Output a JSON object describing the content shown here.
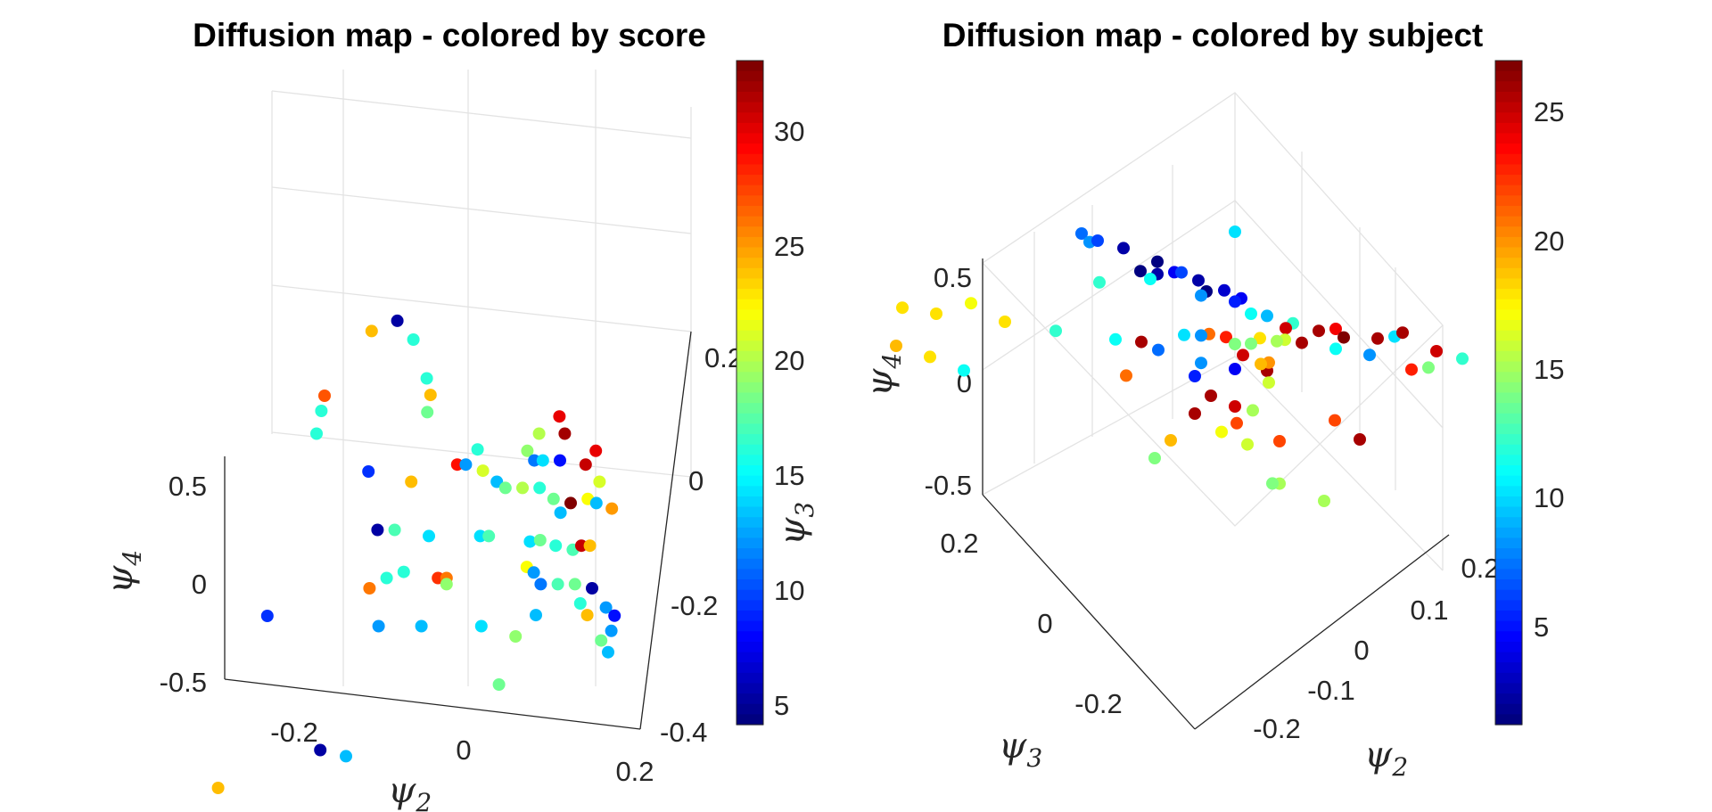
{
  "chart_data": [
    {
      "type": "scatter",
      "title": "Diffusion map - colored by score",
      "xlabel": "ψ2",
      "ylabel": "ψ3",
      "zlabel": "ψ4",
      "x_ticks": [
        "-0.2",
        "0",
        "0.2"
      ],
      "y_ticks": [
        "-0.4",
        "-0.2",
        "0",
        "0.2"
      ],
      "z_ticks": [
        "-0.5",
        "0",
        "0.5"
      ],
      "xlim": [
        -0.3,
        0.2
      ],
      "ylim": [
        -0.4,
        0.3
      ],
      "zlim": [
        -0.5,
        0.9
      ],
      "view": "3d-elevated",
      "grid": true,
      "colormap": "jet",
      "colorbar": {
        "label": "ψ3",
        "ticks": [
          "5",
          "10",
          "15",
          "20",
          "25",
          "30"
        ],
        "range": [
          4,
          33
        ]
      },
      "points": [
        {
          "x": -0.13,
          "y": 0.28,
          "z": 0.55,
          "c": 5
        },
        {
          "x": -0.16,
          "y": 0.28,
          "z": 0.5,
          "c": 24
        },
        {
          "x": -0.1,
          "y": 0.22,
          "z": 0.62,
          "c": 16
        },
        {
          "x": -0.09,
          "y": 0.25,
          "z": 0.35,
          "c": 16
        },
        {
          "x": -0.08,
          "y": 0.22,
          "z": 0.35,
          "c": 24
        },
        {
          "x": -0.08,
          "y": 0.2,
          "z": 0.32,
          "c": 18
        },
        {
          "x": -0.2,
          "y": 0.2,
          "z": 0.4,
          "c": 27
        },
        {
          "x": -0.2,
          "y": 0.18,
          "z": 0.38,
          "c": 16
        },
        {
          "x": -0.2,
          "y": 0.15,
          "z": 0.35,
          "c": 16
        },
        {
          "x": -0.13,
          "y": 0.1,
          "z": 0.3,
          "c": 9
        },
        {
          "x": -0.08,
          "y": 0.1,
          "z": 0.25,
          "c": 24
        },
        {
          "x": -0.03,
          "y": 0.12,
          "z": 0.28,
          "c": 29
        },
        {
          "x": -0.02,
          "y": 0.12,
          "z": 0.28,
          "c": 12
        },
        {
          "x": -0.01,
          "y": 0.14,
          "z": 0.3,
          "c": 16
        },
        {
          "x": 0.0,
          "y": 0.12,
          "z": 0.25,
          "c": 21
        },
        {
          "x": 0.02,
          "y": 0.1,
          "z": 0.25,
          "c": 13
        },
        {
          "x": 0.03,
          "y": 0.1,
          "z": 0.22,
          "c": 18
        },
        {
          "x": 0.05,
          "y": 0.1,
          "z": 0.22,
          "c": 20
        },
        {
          "x": 0.07,
          "y": 0.1,
          "z": 0.22,
          "c": 16
        },
        {
          "x": -0.11,
          "y": 0.05,
          "z": 0.15,
          "c": 5
        },
        {
          "x": -0.09,
          "y": 0.05,
          "z": 0.15,
          "c": 17
        },
        {
          "x": 0.01,
          "y": 0.05,
          "z": 0.12,
          "c": 14
        },
        {
          "x": 0.02,
          "y": 0.05,
          "z": 0.12,
          "c": 17
        },
        {
          "x": -0.11,
          "y": 0.0,
          "z": 0.0,
          "c": 26
        },
        {
          "x": -0.09,
          "y": 0.0,
          "z": 0.05,
          "c": 16
        },
        {
          "x": -0.07,
          "y": 0.0,
          "z": 0.08,
          "c": 16
        },
        {
          "x": -0.05,
          "y": 0.05,
          "z": 0.12,
          "c": 14
        },
        {
          "x": -0.03,
          "y": 0.0,
          "z": 0.05,
          "c": 28
        },
        {
          "x": -0.02,
          "y": 0.0,
          "z": 0.05,
          "c": 26
        },
        {
          "x": -0.02,
          "y": 0.0,
          "z": 0.02,
          "c": 19
        },
        {
          "x": -0.22,
          "y": -0.05,
          "z": 0.0,
          "c": 9
        },
        {
          "x": -0.09,
          "y": -0.05,
          "z": -0.05,
          "c": 12
        },
        {
          "x": -0.04,
          "y": -0.05,
          "z": -0.05,
          "c": 13
        },
        {
          "x": 0.03,
          "y": -0.05,
          "z": -0.05,
          "c": 14
        },
        {
          "x": 0.07,
          "y": -0.05,
          "z": -0.1,
          "c": 19
        },
        {
          "x": 0.06,
          "y": 0.15,
          "z": 0.35,
          "c": 20
        },
        {
          "x": 0.08,
          "y": 0.17,
          "z": 0.38,
          "c": 30
        },
        {
          "x": 0.09,
          "y": 0.15,
          "z": 0.35,
          "c": 32
        },
        {
          "x": 0.05,
          "y": 0.13,
          "z": 0.32,
          "c": 19
        },
        {
          "x": 0.06,
          "y": 0.12,
          "z": 0.3,
          "c": 11
        },
        {
          "x": 0.07,
          "y": 0.12,
          "z": 0.3,
          "c": 14
        },
        {
          "x": 0.09,
          "y": 0.12,
          "z": 0.3,
          "c": 8
        },
        {
          "x": 0.12,
          "y": 0.12,
          "z": 0.28,
          "c": 31
        },
        {
          "x": 0.13,
          "y": 0.13,
          "z": 0.32,
          "c": 30
        },
        {
          "x": 0.14,
          "y": 0.1,
          "z": 0.25,
          "c": 21
        },
        {
          "x": 0.09,
          "y": 0.08,
          "z": 0.22,
          "c": 18
        },
        {
          "x": 0.11,
          "y": 0.08,
          "z": 0.2,
          "c": 33
        },
        {
          "x": 0.1,
          "y": 0.07,
          "z": 0.18,
          "c": 13
        },
        {
          "x": 0.13,
          "y": 0.08,
          "z": 0.22,
          "c": 22
        },
        {
          "x": 0.14,
          "y": 0.08,
          "z": 0.2,
          "c": 13
        },
        {
          "x": 0.16,
          "y": 0.07,
          "z": 0.2,
          "c": 25
        },
        {
          "x": 0.07,
          "y": 0.04,
          "z": 0.12,
          "c": 14
        },
        {
          "x": 0.08,
          "y": 0.05,
          "z": 0.1,
          "c": 18
        },
        {
          "x": 0.1,
          "y": 0.04,
          "z": 0.1,
          "c": 16
        },
        {
          "x": 0.12,
          "y": 0.04,
          "z": 0.08,
          "c": 17
        },
        {
          "x": 0.13,
          "y": 0.04,
          "z": 0.1,
          "c": 31
        },
        {
          "x": 0.14,
          "y": 0.04,
          "z": 0.1,
          "c": 24
        },
        {
          "x": 0.07,
          "y": 0.02,
          "z": 0.05,
          "c": 22
        },
        {
          "x": 0.08,
          "y": 0.01,
          "z": 0.05,
          "c": 12
        },
        {
          "x": 0.09,
          "y": 0.0,
          "z": 0.02,
          "c": 11
        },
        {
          "x": 0.11,
          "y": 0.0,
          "z": 0.02,
          "c": 17
        },
        {
          "x": 0.13,
          "y": 0.0,
          "z": 0.02,
          "c": 18
        },
        {
          "x": 0.15,
          "y": 0.0,
          "z": 0.0,
          "c": 5
        },
        {
          "x": 0.14,
          "y": -0.02,
          "z": -0.02,
          "c": 16
        },
        {
          "x": 0.17,
          "y": -0.02,
          "z": -0.04,
          "c": 12
        },
        {
          "x": 0.18,
          "y": -0.02,
          "z": -0.08,
          "c": 8
        },
        {
          "x": 0.18,
          "y": -0.04,
          "z": -0.1,
          "c": 12
        },
        {
          "x": 0.17,
          "y": -0.05,
          "z": -0.12,
          "c": 18
        },
        {
          "x": 0.18,
          "y": -0.06,
          "z": -0.15,
          "c": 13
        },
        {
          "x": 0.15,
          "y": -0.03,
          "z": -0.05,
          "c": 24
        },
        {
          "x": 0.09,
          "y": -0.03,
          "z": -0.05,
          "c": 13
        },
        {
          "x": 0.06,
          "y": -0.1,
          "z": -0.2,
          "c": 18
        },
        {
          "x": -0.13,
          "y": -0.2,
          "z": -0.25,
          "c": 5
        },
        {
          "x": -0.1,
          "y": -0.2,
          "z": -0.28,
          "c": 13
        },
        {
          "x": -0.24,
          "y": -0.25,
          "z": -0.3,
          "c": 24
        }
      ]
    },
    {
      "type": "scatter",
      "title": "Diffusion map - colored by subject",
      "xlabel": "ψ2",
      "ylabel": "ψ3",
      "zlabel": "ψ4",
      "x_ticks": [
        "-0.2",
        "-0.1",
        "0",
        "0.1",
        "0.2"
      ],
      "y_ticks": [
        "-0.2",
        "0",
        "0.2"
      ],
      "z_ticks": [
        "-0.5",
        "0",
        "0.5"
      ],
      "xlim": [
        -0.25,
        0.25
      ],
      "ylim": [
        -0.3,
        0.3
      ],
      "zlim": [
        -0.5,
        0.6
      ],
      "view": "3d-oblique",
      "grid": true,
      "colormap": "jet",
      "colorbar": {
        "label": "",
        "ticks": [
          "5",
          "10",
          "15",
          "20",
          "25"
        ],
        "range": [
          1,
          27
        ]
      },
      "points": [
        {
          "x": 0.0,
          "y": 0.0,
          "z": 0.5,
          "c": 10
        },
        {
          "x": -0.08,
          "y": 0.1,
          "z": 0.4,
          "c": 7
        },
        {
          "x": -0.07,
          "y": 0.1,
          "z": 0.38,
          "c": 8
        },
        {
          "x": -0.06,
          "y": 0.1,
          "z": 0.4,
          "c": 6
        },
        {
          "x": -0.05,
          "y": 0.08,
          "z": 0.38,
          "c": 2
        },
        {
          "x": -0.03,
          "y": 0.06,
          "z": 0.35,
          "c": 1
        },
        {
          "x": -0.02,
          "y": 0.05,
          "z": 0.32,
          "c": 4
        },
        {
          "x": 0.0,
          "y": 0.06,
          "z": 0.35,
          "c": 6
        },
        {
          "x": 0.01,
          "y": 0.05,
          "z": 0.33,
          "c": 2
        },
        {
          "x": 0.02,
          "y": 0.05,
          "z": 0.3,
          "c": 1
        },
        {
          "x": 0.02,
          "y": 0.03,
          "z": 0.3,
          "c": 3
        },
        {
          "x": 0.03,
          "y": 0.02,
          "z": 0.28,
          "c": 4
        },
        {
          "x": -0.04,
          "y": 0.07,
          "z": 0.3,
          "c": 1
        },
        {
          "x": -0.03,
          "y": 0.06,
          "z": 0.3,
          "c": 2
        },
        {
          "x": -0.05,
          "y": 0.05,
          "z": 0.25,
          "c": 11
        },
        {
          "x": -0.08,
          "y": 0.08,
          "z": 0.2,
          "c": 12
        },
        {
          "x": -0.02,
          "y": 0.02,
          "z": 0.22,
          "c": 8
        },
        {
          "x": 0.0,
          "y": 0.0,
          "z": 0.22,
          "c": 5
        },
        {
          "x": 0.02,
          "y": 0.0,
          "z": 0.2,
          "c": 11
        },
        {
          "x": 0.04,
          "y": 0.0,
          "z": 0.22,
          "c": 9
        },
        {
          "x": 0.05,
          "y": -0.02,
          "z": 0.2,
          "c": 12
        },
        {
          "x": 0.03,
          "y": -0.03,
          "z": 0.15,
          "c": 25
        },
        {
          "x": 0.06,
          "y": -0.04,
          "z": 0.18,
          "c": 26
        },
        {
          "x": 0.07,
          "y": -0.05,
          "z": 0.2,
          "c": 24
        },
        {
          "x": 0.08,
          "y": -0.05,
          "z": 0.18,
          "c": 27
        },
        {
          "x": 0.1,
          "y": -0.07,
          "z": 0.2,
          "c": 26
        },
        {
          "x": 0.11,
          "y": -0.08,
          "z": 0.22,
          "c": 10
        },
        {
          "x": 0.12,
          "y": -0.08,
          "z": 0.25,
          "c": 26
        },
        {
          "x": 0.14,
          "y": -0.1,
          "z": 0.2,
          "c": 25
        },
        {
          "x": 0.15,
          "y": -0.12,
          "z": 0.18,
          "c": 12
        },
        {
          "x": 0.13,
          "y": -0.1,
          "z": 0.12,
          "c": 14
        },
        {
          "x": 0.12,
          "y": -0.09,
          "z": 0.1,
          "c": 23
        },
        {
          "x": 0.09,
          "y": -0.07,
          "z": 0.12,
          "c": 8
        },
        {
          "x": 0.07,
          "y": -0.05,
          "z": 0.12,
          "c": 11
        },
        {
          "x": 0.05,
          "y": -0.03,
          "z": 0.12,
          "c": 26
        },
        {
          "x": 0.04,
          "y": -0.02,
          "z": 0.12,
          "c": 16
        },
        {
          "x": 0.03,
          "y": -0.02,
          "z": 0.1,
          "c": 15
        },
        {
          "x": 0.02,
          "y": -0.01,
          "z": 0.1,
          "c": 18
        },
        {
          "x": 0.02,
          "y": 0.0,
          "z": 0.08,
          "c": 14
        },
        {
          "x": 0.0,
          "y": 0.01,
          "z": 0.08,
          "c": 23
        },
        {
          "x": -0.01,
          "y": 0.02,
          "z": 0.08,
          "c": 21
        },
        {
          "x": -0.02,
          "y": 0.02,
          "z": 0.06,
          "c": 8
        },
        {
          "x": -0.03,
          "y": 0.03,
          "z": 0.05,
          "c": 10
        },
        {
          "x": 0.0,
          "y": 0.0,
          "z": 0.05,
          "c": 14
        },
        {
          "x": 0.01,
          "y": 0.0,
          "z": 0.02,
          "c": 25
        },
        {
          "x": 0.04,
          "y": 0.0,
          "z": 0.0,
          "c": 26
        },
        {
          "x": 0.02,
          "y": -0.02,
          "z": 0.0,
          "c": 20
        },
        {
          "x": 0.01,
          "y": -0.02,
          "z": -0.02,
          "c": 19
        },
        {
          "x": -0.05,
          "y": 0.06,
          "z": 0.0,
          "c": 26
        },
        {
          "x": -0.04,
          "y": 0.05,
          "z": -0.02,
          "c": 7
        },
        {
          "x": -0.06,
          "y": 0.08,
          "z": 0.0,
          "c": 11
        },
        {
          "x": -0.02,
          "y": 0.02,
          "z": -0.05,
          "c": 8
        },
        {
          "x": 0.0,
          "y": 0.0,
          "z": -0.05,
          "c": 4
        },
        {
          "x": 0.02,
          "y": -0.02,
          "z": -0.08,
          "c": 16
        },
        {
          "x": -0.05,
          "y": 0.0,
          "z": -0.15,
          "c": 5
        },
        {
          "x": -0.03,
          "y": 0.0,
          "z": -0.2,
          "c": 26
        },
        {
          "x": 0.0,
          "y": 0.0,
          "z": -0.2,
          "c": 25
        },
        {
          "x": 0.0,
          "y": -0.02,
          "z": -0.22,
          "c": 15
        },
        {
          "x": 0.08,
          "y": -0.04,
          "z": -0.15,
          "c": 22
        },
        {
          "x": 0.1,
          "y": -0.05,
          "z": -0.2,
          "c": 26
        },
        {
          "x": -0.15,
          "y": 0.2,
          "z": 0.0,
          "c": 18
        },
        {
          "x": -0.17,
          "y": 0.22,
          "z": 0.0,
          "c": 18
        },
        {
          "x": -0.14,
          "y": 0.17,
          "z": 0.05,
          "c": 17
        },
        {
          "x": -0.12,
          "y": 0.15,
          "z": 0.0,
          "c": 18
        },
        {
          "x": -0.09,
          "y": 0.12,
          "z": 0.0,
          "c": 12
        },
        {
          "x": -0.2,
          "y": 0.2,
          "z": -0.2,
          "c": 19
        },
        {
          "x": -0.18,
          "y": 0.18,
          "z": -0.22,
          "c": 18
        },
        {
          "x": -0.16,
          "y": 0.16,
          "z": -0.25,
          "c": 11
        },
        {
          "x": -0.08,
          "y": 0.05,
          "z": -0.18,
          "c": 21
        },
        {
          "x": -0.05,
          "y": 0.0,
          "z": -0.3,
          "c": 26
        },
        {
          "x": -0.02,
          "y": -0.02,
          "z": -0.3,
          "c": 22
        },
        {
          "x": 0.0,
          "y": -0.05,
          "z": -0.35,
          "c": 22
        },
        {
          "x": -0.05,
          "y": -0.03,
          "z": -0.38,
          "c": 17
        },
        {
          "x": -0.04,
          "y": -0.05,
          "z": -0.42,
          "c": 16
        },
        {
          "x": -0.08,
          "y": 0.0,
          "z": -0.45,
          "c": 19
        },
        {
          "x": -0.1,
          "y": 0.0,
          "z": -0.55,
          "c": 14
        },
        {
          "x": 0.0,
          "y": -0.05,
          "z": -0.52,
          "c": 15
        },
        {
          "x": -0.02,
          "y": -0.06,
          "z": -0.55,
          "c": 14
        },
        {
          "x": 0.0,
          "y": -0.1,
          "z": -0.6,
          "c": 15
        }
      ]
    }
  ]
}
